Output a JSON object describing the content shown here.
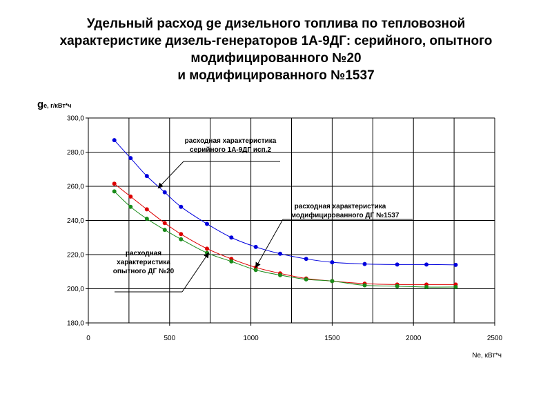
{
  "chart_data": {
    "type": "line",
    "title_lines": [
      "Удельный расход gе дизельного топлива по тепловозной",
      "характеристике дизель-генераторов 1А-9ДГ: серийного, опытного",
      "модифицированного №20",
      "и модифицированного №1537"
    ],
    "ylabel_main": "g",
    "ylabel_sub": "е, г/кВт*ч",
    "xlabel": "Nе, кВт*ч",
    "xlim": [
      0,
      2500
    ],
    "ylim": [
      180,
      300
    ],
    "x_ticks": [
      0,
      500,
      1000,
      1500,
      2000,
      2500
    ],
    "x_tick_labels": [
      "0",
      "500",
      "1000",
      "1500",
      "2000",
      "2500"
    ],
    "y_ticks": [
      180,
      200,
      220,
      240,
      260,
      280,
      300
    ],
    "y_tick_labels": [
      "180,0",
      "200,0",
      "220,0",
      "240,0",
      "260,0",
      "280,0",
      "300,0"
    ],
    "grid": true,
    "series": [
      {
        "color": "#0000dd",
        "x": [
          160,
          260,
          360,
          470,
          570,
          730,
          880,
          1030,
          1180,
          1340,
          1500,
          1700,
          1900,
          2080,
          2260
        ],
        "y": [
          287,
          276.5,
          266,
          256.5,
          248,
          238,
          230,
          224.5,
          220.5,
          217.5,
          215.5,
          214.5,
          214.2,
          214.2,
          214
        ]
      },
      {
        "color": "#dd0000",
        "x": [
          160,
          260,
          360,
          470,
          570,
          730,
          880,
          1030,
          1180,
          1340,
          1500,
          1700,
          1900,
          2080,
          2260
        ],
        "y": [
          261.5,
          254,
          246.5,
          238.5,
          232,
          223.5,
          217.5,
          212.5,
          209,
          206,
          204.5,
          203,
          202.5,
          202.5,
          202.5
        ]
      },
      {
        "color": "#1a8c1a",
        "x": [
          160,
          260,
          360,
          470,
          570,
          730,
          880,
          1030,
          1180,
          1340,
          1500,
          1700,
          1900,
          2080,
          2260
        ],
        "y": [
          257,
          248,
          241,
          234.5,
          229,
          221,
          216,
          211,
          208,
          205.5,
          204.5,
          202,
          201.5,
          201,
          201
        ]
      }
    ],
    "annotations": [
      {
        "lines": [
          "расходная характеристика",
          "серийного 1А-9ДГ исп.2"
        ],
        "target": {
          "x": 430,
          "y": 259
        }
      },
      {
        "lines": [
          "расходная характеристика",
          "модифицированного ДГ №1537"
        ],
        "target": {
          "x": 1030,
          "y": 212.5
        }
      },
      {
        "lines": [
          "расходная",
          "характеристика",
          "опытного ДГ №20"
        ],
        "target": {
          "x": 740,
          "y": 221
        }
      }
    ]
  }
}
